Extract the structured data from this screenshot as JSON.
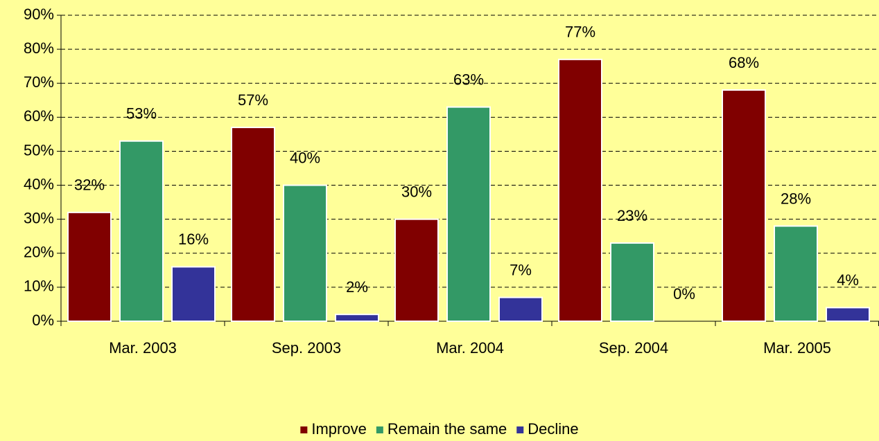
{
  "chart_data": {
    "type": "bar",
    "categories": [
      "Mar. 2003",
      "Sep. 2003",
      "Mar. 2004",
      "Sep. 2004",
      "Mar. 2005"
    ],
    "series": [
      {
        "name": "Improve",
        "color": "#800000",
        "values": [
          32,
          57,
          30,
          77,
          68
        ],
        "value_labels": [
          "32%",
          "57%",
          "30%",
          "77%",
          "68%"
        ]
      },
      {
        "name": "Remain the same",
        "color": "#339966",
        "values": [
          53,
          40,
          63,
          23,
          28
        ],
        "value_labels": [
          "53%",
          "40%",
          "63%",
          "23%",
          "28%"
        ]
      },
      {
        "name": "Decline",
        "color": "#333399",
        "values": [
          16,
          2,
          7,
          0,
          4
        ],
        "value_labels": [
          "16%",
          "2%",
          "7%",
          "0%",
          "4%"
        ]
      }
    ],
    "ylim": [
      0,
      90
    ],
    "yticks": [
      {
        "value": 0,
        "label": "0%"
      },
      {
        "value": 10,
        "label": "10%"
      },
      {
        "value": 20,
        "label": "20%"
      },
      {
        "value": 30,
        "label": "30%"
      },
      {
        "value": 40,
        "label": "40%"
      },
      {
        "value": 50,
        "label": "50%"
      },
      {
        "value": 60,
        "label": "60%"
      },
      {
        "value": 70,
        "label": "70%"
      },
      {
        "value": 80,
        "label": "80%"
      },
      {
        "value": 90,
        "label": "90%"
      }
    ],
    "grid": true,
    "legend": "bottom"
  }
}
